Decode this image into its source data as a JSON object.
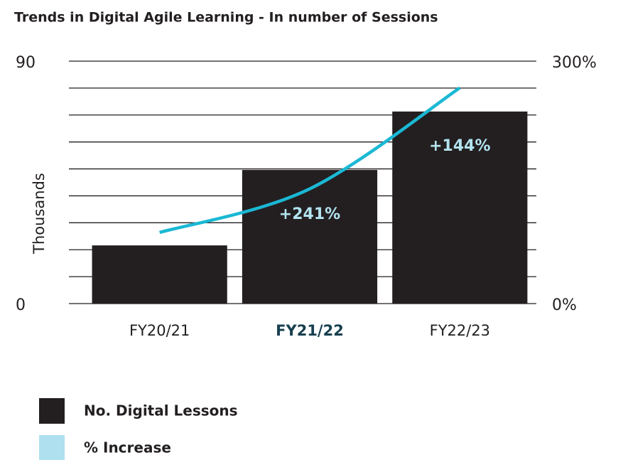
{
  "chart_data": {
    "type": "bar",
    "title": "Trends in Digital Agile Learning - In number of Sessions",
    "ylabel": "Thousands",
    "categories": [
      "FY20/21",
      "FY21/22",
      "FY22/23"
    ],
    "highlight_index": 1,
    "series": [
      {
        "name": "No. Digital Lessons",
        "color": "#231f20",
        "values": [
          21.6,
          49.6,
          71.3
        ],
        "value_labels": [
          null,
          "+241%",
          "+144%"
        ]
      },
      {
        "name": "% Increase",
        "color": "#1ab8d4",
        "legend_color": "#aee0ef",
        "axis": "y2",
        "type": "line",
        "values": [
          88,
          142,
          267
        ]
      }
    ],
    "ylim": [
      0,
      90
    ],
    "yticks": [
      0,
      90
    ],
    "minor_yticks": [
      10,
      20,
      30,
      40,
      50,
      60,
      70,
      80
    ],
    "y2lim": [
      0,
      300
    ],
    "y2ticks": [
      {
        "value": 0,
        "label": "0%"
      },
      {
        "value": 300,
        "label": "300%"
      }
    ],
    "grid": true
  }
}
